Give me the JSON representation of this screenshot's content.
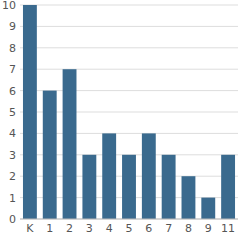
{
  "chart_data": {
    "type": "bar",
    "categories": [
      "K",
      "1",
      "2",
      "3",
      "4",
      "5",
      "6",
      "7",
      "8",
      "9",
      "11"
    ],
    "values": [
      10,
      6,
      7,
      3,
      4,
      3,
      4,
      3,
      2,
      1,
      3
    ],
    "color": "#3a6a8e",
    "ylim": [
      0,
      10
    ],
    "yticks": [
      0,
      1,
      2,
      3,
      4,
      5,
      6,
      7,
      8,
      9,
      10
    ],
    "grid": true
  }
}
